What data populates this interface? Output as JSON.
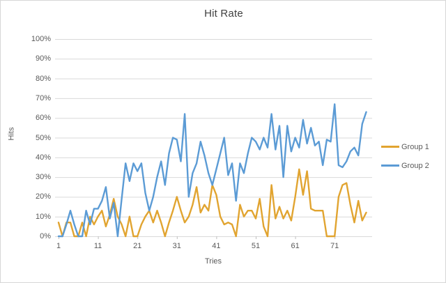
{
  "chart": {
    "title": "Hit Rate",
    "x_axis_title": "Tries",
    "y_axis_title": "Hits",
    "colors": {
      "group1": "#E1A430",
      "group2": "#5B9BD5",
      "grid": "#D9D9D9",
      "tick": "#BFBFBF",
      "label_text": "#595959",
      "title_text": "#404040",
      "frame": "#D7D7D7"
    },
    "legend": [
      {
        "label": "Group 1",
        "color": "#E1A430"
      },
      {
        "label": "Group 2",
        "color": "#5B9BD5"
      }
    ]
  },
  "chart_data": {
    "type": "line",
    "title": "Hit Rate",
    "xlabel": "Tries",
    "ylabel": "Hits",
    "x_start": 1,
    "x_range": [
      1,
      79
    ],
    "ylim": [
      0,
      100
    ],
    "grid": "horizontal",
    "legend_position": "right",
    "x_tick_values": [
      1,
      11,
      21,
      31,
      41,
      51,
      61,
      71
    ],
    "y_tick_values": [
      0,
      10,
      20,
      30,
      40,
      50,
      60,
      70,
      80,
      90,
      100
    ],
    "y_tick_labels": [
      "0%",
      "10%",
      "20%",
      "30%",
      "40%",
      "50%",
      "60%",
      "70%",
      "80%",
      "90%",
      "100%"
    ],
    "series": [
      {
        "name": "Group 1",
        "color": "#E1A430",
        "values": [
          7,
          0,
          7,
          7,
          0,
          0,
          7,
          0,
          10,
          6,
          10,
          13,
          5,
          11,
          19,
          10,
          6,
          0,
          10,
          0,
          0,
          6,
          10,
          13,
          7,
          13,
          7,
          0,
          7,
          13,
          20,
          13,
          7,
          10,
          16,
          25,
          12,
          16,
          13,
          26,
          21,
          10,
          6,
          7,
          6,
          0,
          16,
          10,
          13,
          13,
          9,
          19,
          5,
          0,
          26,
          9,
          15,
          9,
          13,
          8,
          20,
          34,
          21,
          33,
          14,
          13,
          13,
          13,
          0,
          0,
          0,
          20,
          26,
          27,
          16,
          7,
          18,
          8,
          12
        ]
      },
      {
        "name": "Group 2",
        "color": "#5B9BD5",
        "values": [
          0,
          0,
          6,
          13,
          6,
          0,
          0,
          13,
          6,
          14,
          14,
          18,
          25,
          9,
          17,
          0,
          19,
          37,
          28,
          37,
          33,
          37,
          22,
          13,
          20,
          30,
          38,
          26,
          42,
          50,
          49,
          38,
          62,
          20,
          32,
          37,
          48,
          41,
          32,
          26,
          34,
          42,
          50,
          31,
          37,
          18,
          37,
          32,
          42,
          50,
          48,
          44,
          50,
          45,
          62,
          44,
          56,
          30,
          56,
          43,
          50,
          45,
          59,
          47,
          55,
          46,
          48,
          36,
          49,
          48,
          67,
          36,
          35,
          38,
          43,
          45,
          41,
          57,
          63
        ]
      }
    ]
  }
}
